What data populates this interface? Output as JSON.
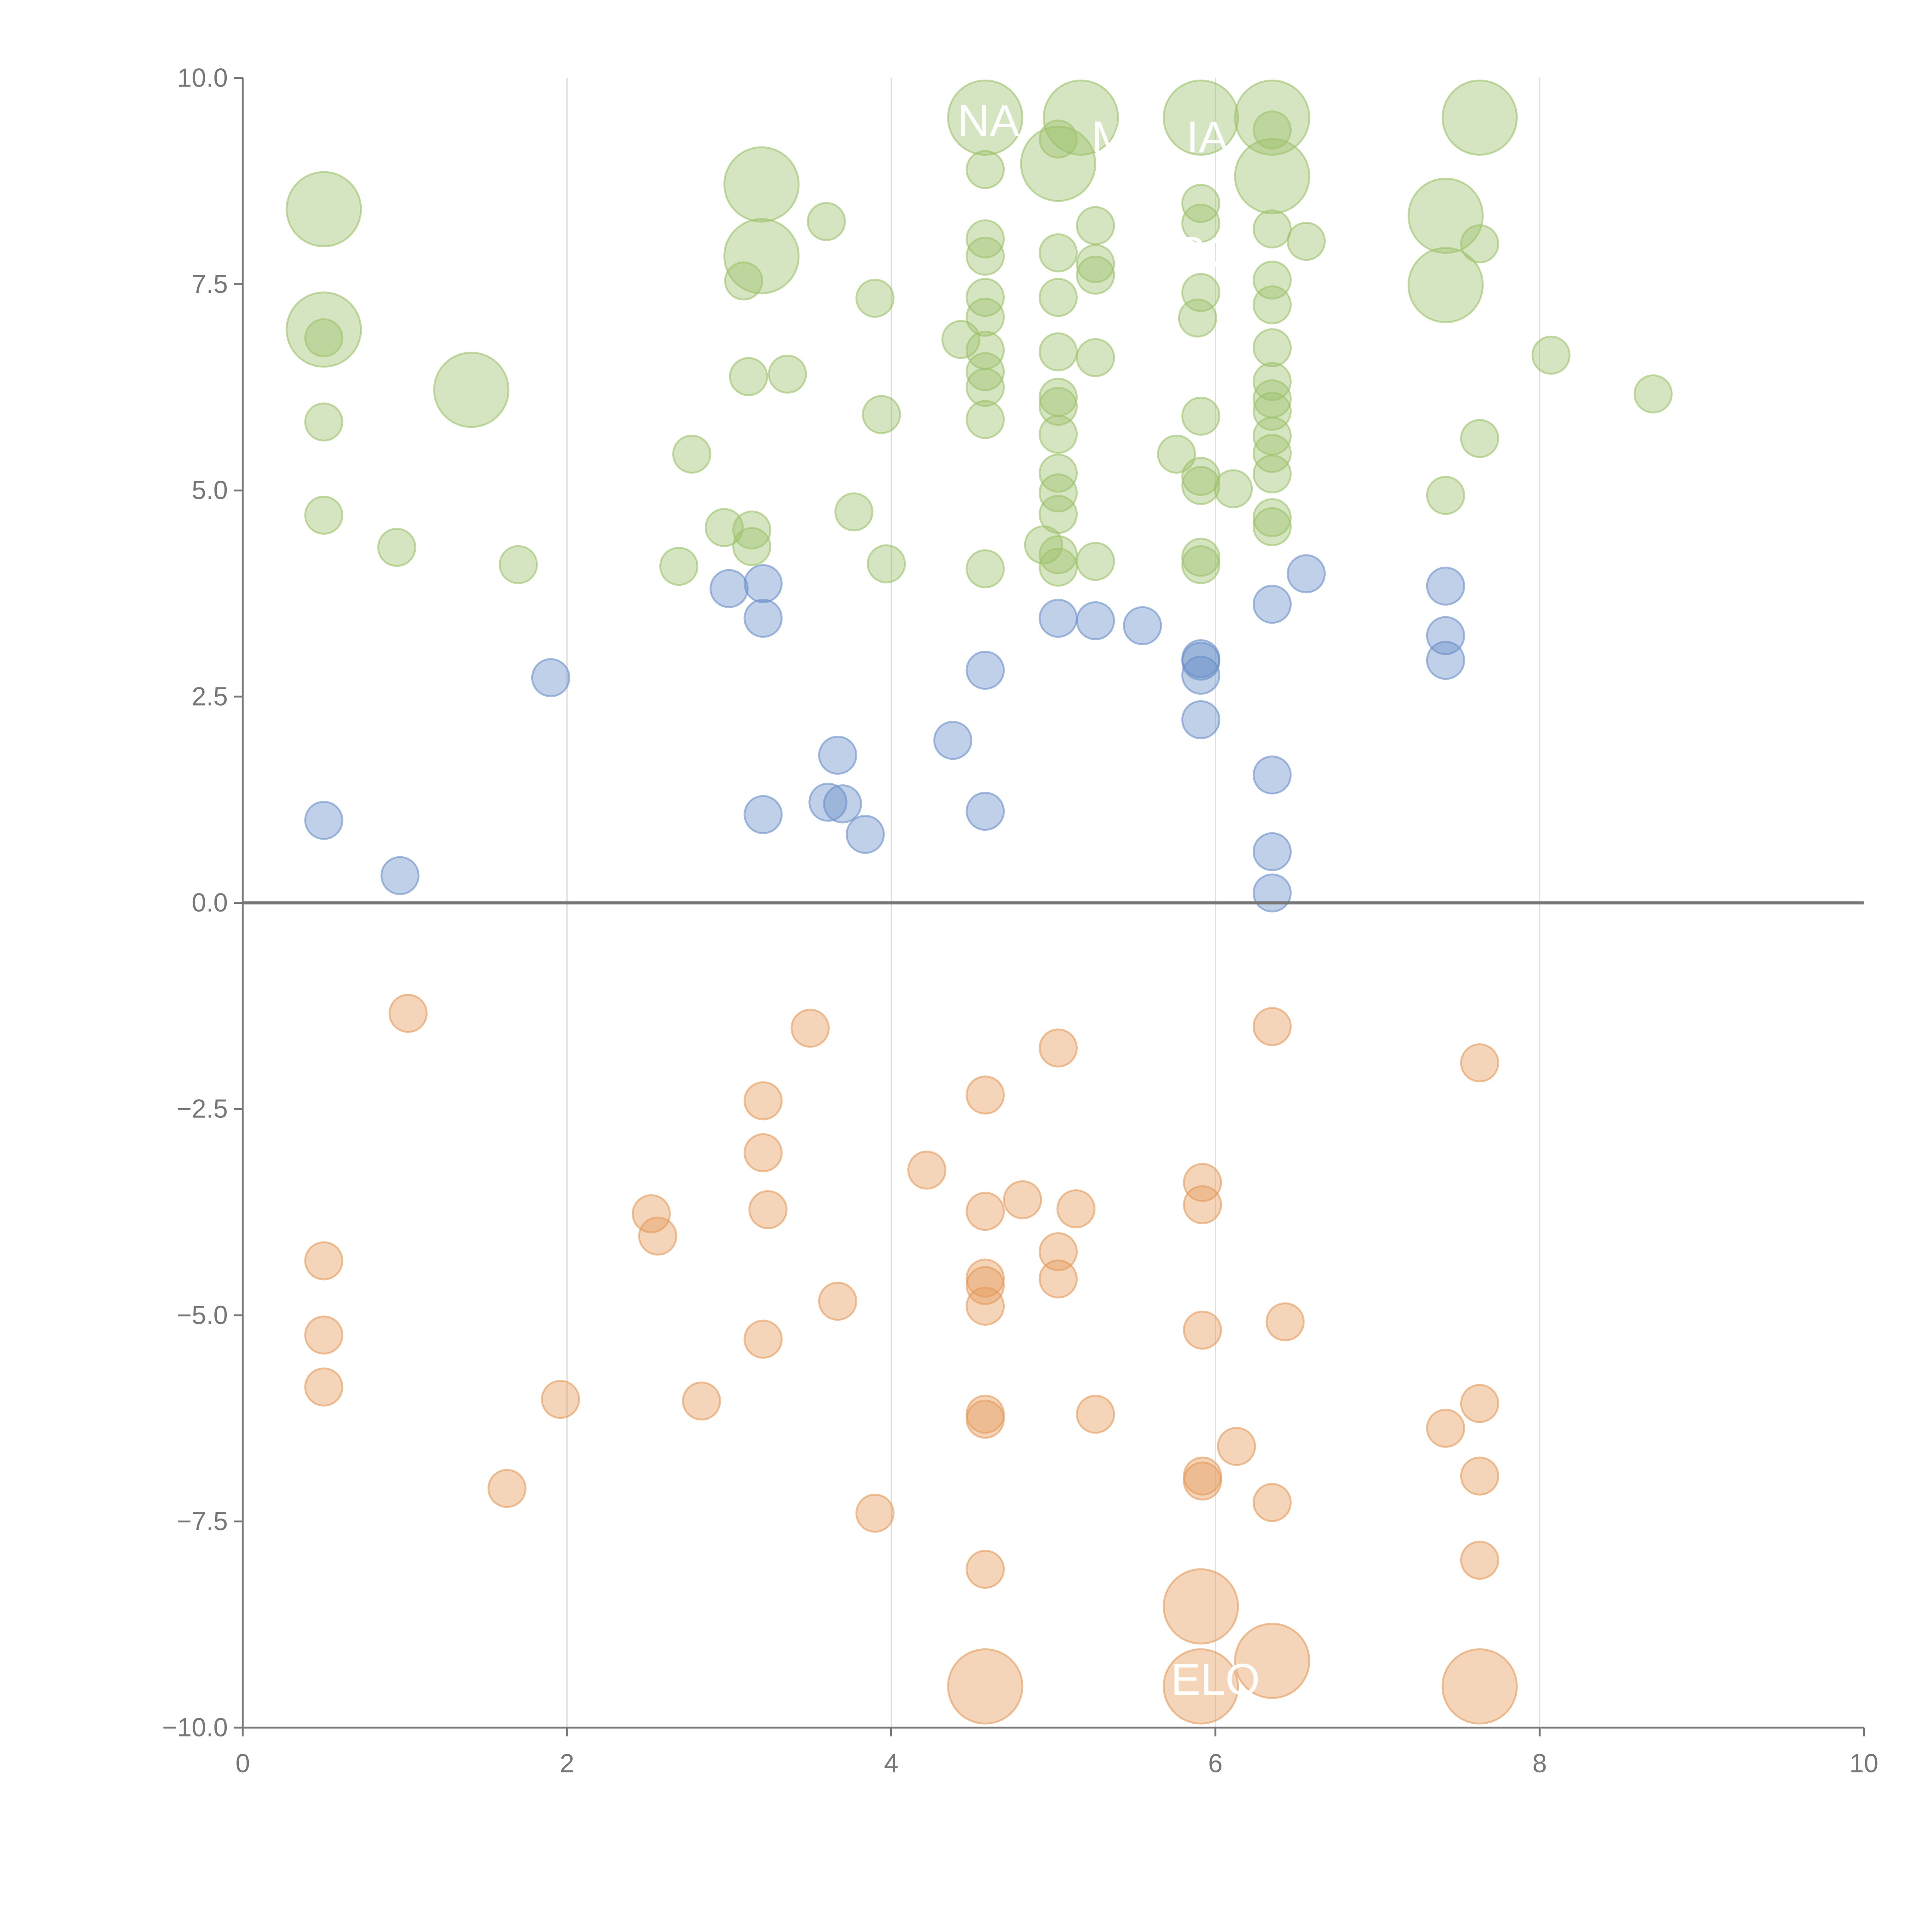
{
  "chart_data": {
    "type": "scatter",
    "title": "",
    "xlabel": "",
    "ylabel": "",
    "xlim": [
      0,
      10
    ],
    "ylim": [
      -10,
      10
    ],
    "x_ticks": [
      0,
      2,
      4,
      6,
      8,
      10
    ],
    "x_tick_labels": [
      "0",
      "2",
      "4",
      "6",
      "8",
      "10"
    ],
    "y_ticks": [
      10,
      7.5,
      5,
      2.5,
      0,
      -2.5,
      -5,
      -7.5,
      -10
    ],
    "y_tick_labels": [
      "10.0",
      "7.5",
      "5.0",
      "2.5",
      "0.0",
      "−2.5",
      "−5.0",
      "−7.5",
      "−10.0"
    ],
    "grid": "vertical",
    "zero_line": true,
    "series": [
      {
        "name": "green",
        "color": "#9dc26b",
        "points": [
          [
            0.5,
            8.41,
            2
          ],
          [
            0.5,
            6.95,
            2
          ],
          [
            1.41,
            6.22,
            2
          ],
          [
            3.2,
            8.71,
            2
          ],
          [
            3.2,
            7.84,
            2
          ],
          [
            4.58,
            9.52,
            2
          ],
          [
            5.03,
            8.96,
            2
          ],
          [
            5.17,
            9.52,
            2
          ],
          [
            5.91,
            9.52,
            2
          ],
          [
            6.35,
            9.52,
            2
          ],
          [
            6.35,
            8.81,
            2
          ],
          [
            7.42,
            8.33,
            2
          ],
          [
            7.42,
            7.49,
            2
          ],
          [
            7.63,
            9.52,
            2
          ],
          [
            0.5,
            6.85,
            1
          ],
          [
            0.5,
            5.83,
            1
          ],
          [
            0.5,
            4.7,
            1
          ],
          [
            0.95,
            4.31,
            1
          ],
          [
            1.7,
            4.1,
            1
          ],
          [
            2.77,
            5.44,
            1
          ],
          [
            2.69,
            4.08,
            1
          ],
          [
            2.97,
            4.55,
            1
          ],
          [
            3.14,
            4.52,
            1
          ],
          [
            3.14,
            4.32,
            1
          ],
          [
            3.09,
            7.54,
            1
          ],
          [
            3.12,
            6.38,
            1
          ],
          [
            3.36,
            6.41,
            1
          ],
          [
            3.6,
            8.26,
            1
          ],
          [
            3.9,
            7.33,
            1
          ],
          [
            3.94,
            5.92,
            1
          ],
          [
            3.77,
            4.74,
            1
          ],
          [
            3.97,
            4.11,
            1
          ],
          [
            4.43,
            6.83,
            1
          ],
          [
            4.58,
            8.89,
            1
          ],
          [
            4.58,
            8.05,
            1
          ],
          [
            4.58,
            7.84,
            1
          ],
          [
            4.58,
            7.34,
            1
          ],
          [
            4.58,
            7.1,
            1
          ],
          [
            4.58,
            6.7,
            1
          ],
          [
            4.58,
            6.44,
            1
          ],
          [
            4.58,
            6.25,
            1
          ],
          [
            4.58,
            5.86,
            1
          ],
          [
            4.58,
            4.05,
            1
          ],
          [
            5.03,
            9.26,
            1
          ],
          [
            5.03,
            7.88,
            1
          ],
          [
            5.03,
            7.34,
            1
          ],
          [
            5.03,
            6.68,
            1
          ],
          [
            5.03,
            6.13,
            1
          ],
          [
            5.03,
            6.02,
            1
          ],
          [
            5.03,
            5.68,
            1
          ],
          [
            5.03,
            5.21,
            1
          ],
          [
            5.03,
            4.97,
            1
          ],
          [
            5.03,
            4.71,
            1
          ],
          [
            4.94,
            4.34,
            1
          ],
          [
            5.03,
            4.22,
            1
          ],
          [
            5.03,
            4.07,
            1
          ],
          [
            5.26,
            8.21,
            1
          ],
          [
            5.26,
            7.75,
            1
          ],
          [
            5.26,
            7.61,
            1
          ],
          [
            5.26,
            6.61,
            1
          ],
          [
            5.26,
            4.14,
            1
          ],
          [
            5.76,
            5.44,
            1
          ],
          [
            5.91,
            8.48,
            1
          ],
          [
            5.91,
            8.24,
            1
          ],
          [
            5.91,
            7.4,
            1
          ],
          [
            5.89,
            7.09,
            1
          ],
          [
            5.91,
            5.9,
            1
          ],
          [
            5.91,
            5.17,
            1
          ],
          [
            5.91,
            5.06,
            1
          ],
          [
            5.91,
            4.19,
            1
          ],
          [
            5.91,
            4.1,
            1
          ],
          [
            6.11,
            5.02,
            1
          ],
          [
            6.35,
            9.37,
            1
          ],
          [
            6.35,
            8.17,
            1
          ],
          [
            6.35,
            7.55,
            1
          ],
          [
            6.35,
            7.25,
            1
          ],
          [
            6.35,
            6.73,
            1
          ],
          [
            6.35,
            6.32,
            1
          ],
          [
            6.35,
            6.11,
            1
          ],
          [
            6.35,
            5.96,
            1
          ],
          [
            6.35,
            5.66,
            1
          ],
          [
            6.35,
            5.45,
            1
          ],
          [
            6.35,
            5.2,
            1
          ],
          [
            6.35,
            4.67,
            1
          ],
          [
            6.35,
            4.56,
            1
          ],
          [
            6.56,
            8.02,
            1
          ],
          [
            7.42,
            4.94,
            1
          ],
          [
            7.63,
            7.99,
            1
          ],
          [
            7.63,
            5.63,
            1
          ],
          [
            8.07,
            6.64,
            1
          ],
          [
            8.7,
            6.17,
            1
          ]
        ]
      },
      {
        "name": "blue",
        "color": "#6a8fc8",
        "points": [
          [
            0.5,
            1.0,
            1
          ],
          [
            0.97,
            0.33,
            1
          ],
          [
            1.9,
            2.73,
            1
          ],
          [
            3.0,
            3.81,
            1
          ],
          [
            3.21,
            3.87,
            1
          ],
          [
            3.21,
            3.45,
            1
          ],
          [
            3.21,
            1.07,
            1
          ],
          [
            3.67,
            1.79,
            1
          ],
          [
            3.61,
            1.22,
            1
          ],
          [
            3.7,
            1.2,
            1
          ],
          [
            3.84,
            0.83,
            1
          ],
          [
            4.38,
            1.97,
            1
          ],
          [
            4.58,
            2.82,
            1
          ],
          [
            4.58,
            1.11,
            1
          ],
          [
            5.03,
            3.45,
            1
          ],
          [
            5.26,
            3.42,
            1
          ],
          [
            5.55,
            3.36,
            1
          ],
          [
            5.91,
            2.96,
            1
          ],
          [
            5.91,
            2.93,
            1
          ],
          [
            5.91,
            2.76,
            1
          ],
          [
            5.91,
            2.22,
            1
          ],
          [
            6.35,
            3.62,
            1
          ],
          [
            6.35,
            1.55,
            1
          ],
          [
            6.35,
            0.62,
            1
          ],
          [
            6.35,
            0.12,
            1
          ],
          [
            6.56,
            3.99,
            1
          ],
          [
            7.42,
            3.84,
            1
          ],
          [
            7.42,
            3.24,
            1
          ],
          [
            7.42,
            2.94,
            1
          ]
        ]
      },
      {
        "name": "orange",
        "color": "#e49a5a",
        "points": [
          [
            1.02,
            -1.34,
            1
          ],
          [
            3.5,
            -1.52,
            1
          ],
          [
            5.03,
            -1.76,
            1
          ],
          [
            6.35,
            -1.5,
            1
          ],
          [
            7.63,
            -1.94,
            1
          ],
          [
            4.58,
            -2.33,
            1
          ],
          [
            3.21,
            -2.4,
            1
          ],
          [
            3.21,
            -3.03,
            1
          ],
          [
            4.22,
            -3.24,
            1
          ],
          [
            5.92,
            -3.39,
            1
          ],
          [
            2.52,
            -3.77,
            1
          ],
          [
            3.24,
            -3.72,
            1
          ],
          [
            4.58,
            -3.74,
            1
          ],
          [
            4.81,
            -3.6,
            1
          ],
          [
            5.14,
            -3.71,
            1
          ],
          [
            5.92,
            -3.66,
            1
          ],
          [
            2.56,
            -4.04,
            1
          ],
          [
            5.03,
            -4.23,
            1
          ],
          [
            5.03,
            -4.56,
            1
          ],
          [
            4.58,
            -4.55,
            1
          ],
          [
            4.58,
            -4.64,
            1
          ],
          [
            0.5,
            -4.34,
            1
          ],
          [
            3.67,
            -4.83,
            1
          ],
          [
            4.58,
            -4.89,
            1
          ],
          [
            0.5,
            -5.24,
            1
          ],
          [
            3.21,
            -5.29,
            1
          ],
          [
            5.92,
            -5.18,
            1
          ],
          [
            6.43,
            -5.08,
            1
          ],
          [
            0.5,
            -5.87,
            1
          ],
          [
            1.96,
            -6.02,
            1
          ],
          [
            2.83,
            -6.04,
            1
          ],
          [
            4.58,
            -6.2,
            1
          ],
          [
            4.58,
            -6.26,
            1
          ],
          [
            5.26,
            -6.2,
            1
          ],
          [
            6.13,
            -6.59,
            1
          ],
          [
            7.42,
            -6.37,
            1
          ],
          [
            7.63,
            -6.07,
            1
          ],
          [
            5.92,
            -6.95,
            1
          ],
          [
            5.92,
            -7.01,
            1
          ],
          [
            7.63,
            -6.95,
            1
          ],
          [
            1.63,
            -7.1,
            1
          ],
          [
            3.9,
            -7.4,
            1
          ],
          [
            6.35,
            -7.27,
            1
          ],
          [
            4.58,
            -8.08,
            1
          ],
          [
            7.63,
            -7.97,
            1
          ],
          [
            5.91,
            -8.53,
            2
          ],
          [
            6.35,
            -9.19,
            2
          ],
          [
            4.58,
            -9.5,
            2
          ],
          [
            5.91,
            -9.5,
            2
          ],
          [
            7.63,
            -9.5,
            2
          ]
        ]
      }
    ],
    "annotations": [
      {
        "text": "NA",
        "x": 4.6,
        "y": 9.3
      },
      {
        "text": "M",
        "x": 5.35,
        "y": 9.1
      },
      {
        "text": "IA",
        "x": 5.95,
        "y": 9.1
      },
      {
        "text": "RO",
        "x": 5.95,
        "y": 7.7
      },
      {
        "text": "ELO",
        "x": 6.0,
        "y": -9.6
      }
    ]
  }
}
